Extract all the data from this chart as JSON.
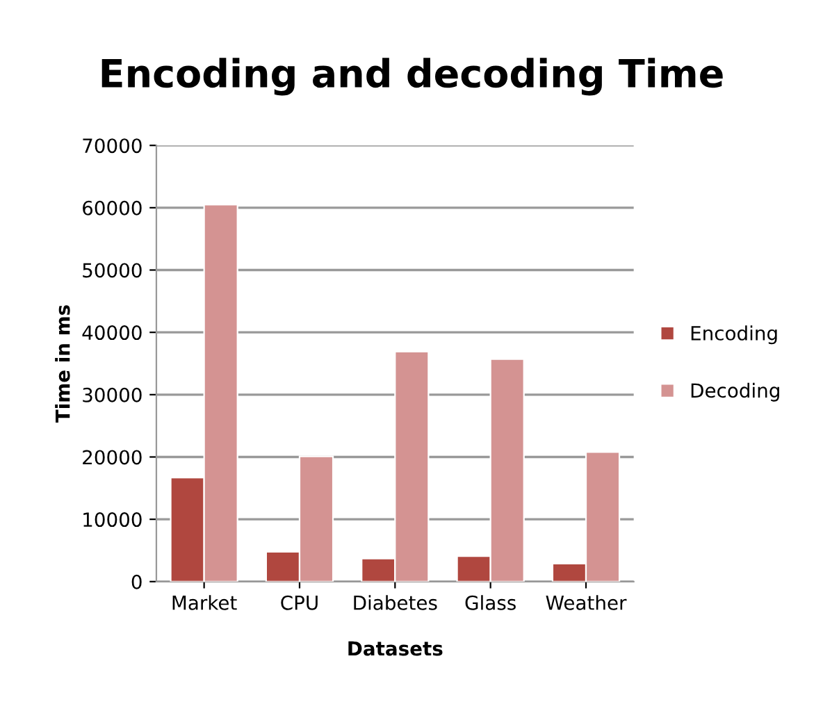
{
  "chart_data": {
    "type": "bar",
    "title": "Encoding and decoding Time",
    "xlabel": "Datasets",
    "ylabel": "Time in ms",
    "categories": [
      "Market",
      "CPU",
      "Diabetes",
      "Glass",
      "Weather"
    ],
    "series": [
      {
        "name": "Encoding",
        "color": "#b0473f",
        "values": [
          16700,
          4800,
          3700,
          4100,
          2900
        ]
      },
      {
        "name": "Decoding",
        "color": "#d49392",
        "values": [
          60500,
          20100,
          36900,
          35700,
          20800
        ]
      }
    ],
    "ylim": [
      0,
      70000
    ],
    "yticks": [
      0,
      10000,
      20000,
      30000,
      40000,
      50000,
      60000,
      70000
    ],
    "grid": "y",
    "legend": "right"
  }
}
